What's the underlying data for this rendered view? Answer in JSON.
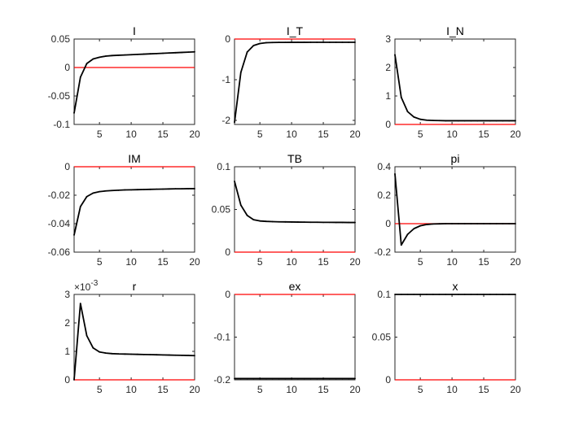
{
  "chart_data": [
    {
      "type": "line",
      "title": "I",
      "xlim": [
        1,
        20
      ],
      "ylim": [
        -0.1,
        0.05
      ],
      "yticks": [
        {
          "v": 0.05,
          "label": "0.05"
        },
        {
          "v": 0,
          "label": "0"
        },
        {
          "v": -0.05,
          "label": "-0.05"
        },
        {
          "v": -0.1,
          "label": "-0.1"
        }
      ],
      "xticks": [
        5,
        10,
        15,
        20
      ],
      "zero_line": 0,
      "zero_color": "#ff0000",
      "x": [
        1,
        2,
        3,
        4,
        5,
        6,
        7,
        8,
        9,
        10,
        11,
        12,
        13,
        14,
        15,
        16,
        17,
        18,
        19,
        20
      ],
      "values": [
        -0.08,
        -0.017,
        0.007,
        0.015,
        0.018,
        0.02,
        0.021,
        0.0215,
        0.022,
        0.0225,
        0.023,
        0.0235,
        0.024,
        0.0245,
        0.025,
        0.0255,
        0.026,
        0.0265,
        0.027,
        0.0275
      ]
    },
    {
      "type": "line",
      "title": "I_T",
      "xlim": [
        1,
        20
      ],
      "ylim": [
        -2.1,
        0
      ],
      "yticks": [
        {
          "v": 0,
          "label": "0"
        },
        {
          "v": -1,
          "label": "-1"
        },
        {
          "v": -2,
          "label": "-2"
        }
      ],
      "xticks": [
        5,
        10,
        15,
        20
      ],
      "zero_line": 0,
      "zero_color": "#ff0000",
      "x": [
        1,
        2,
        3,
        4,
        5,
        6,
        7,
        8,
        9,
        10,
        11,
        12,
        13,
        14,
        15,
        16,
        17,
        18,
        19,
        20
      ],
      "values": [
        -2.05,
        -0.82,
        -0.32,
        -0.16,
        -0.11,
        -0.09,
        -0.085,
        -0.083,
        -0.082,
        -0.081,
        -0.081,
        -0.081,
        -0.08,
        -0.08,
        -0.08,
        -0.08,
        -0.08,
        -0.08,
        -0.08,
        -0.08
      ]
    },
    {
      "type": "line",
      "title": "I_N",
      "xlim": [
        1,
        20
      ],
      "ylim": [
        0,
        3
      ],
      "yticks": [
        {
          "v": 3,
          "label": "3"
        },
        {
          "v": 2,
          "label": "2"
        },
        {
          "v": 1,
          "label": "1"
        },
        {
          "v": 0,
          "label": "0"
        }
      ],
      "xticks": [
        5,
        10,
        15,
        20
      ],
      "zero_line": 0,
      "zero_color": "#ff0000",
      "x": [
        1,
        2,
        3,
        4,
        5,
        6,
        7,
        8,
        9,
        10,
        11,
        12,
        13,
        14,
        15,
        16,
        17,
        18,
        19,
        20
      ],
      "values": [
        2.45,
        0.95,
        0.45,
        0.26,
        0.18,
        0.15,
        0.14,
        0.135,
        0.13,
        0.13,
        0.13,
        0.13,
        0.13,
        0.13,
        0.13,
        0.13,
        0.13,
        0.13,
        0.13,
        0.13
      ]
    },
    {
      "type": "line",
      "title": "IM",
      "xlim": [
        1,
        20
      ],
      "ylim": [
        -0.06,
        0
      ],
      "yticks": [
        {
          "v": 0,
          "label": "0"
        },
        {
          "v": -0.02,
          "label": "-0.02"
        },
        {
          "v": -0.04,
          "label": "-0.04"
        },
        {
          "v": -0.06,
          "label": "-0.06"
        }
      ],
      "xticks": [
        5,
        10,
        15,
        20
      ],
      "zero_line": 0,
      "zero_color": "#ff0000",
      "x": [
        1,
        2,
        3,
        4,
        5,
        6,
        7,
        8,
        9,
        10,
        11,
        12,
        13,
        14,
        15,
        16,
        17,
        18,
        19,
        20
      ],
      "values": [
        -0.048,
        -0.028,
        -0.021,
        -0.0185,
        -0.0175,
        -0.017,
        -0.0167,
        -0.0165,
        -0.0163,
        -0.0162,
        -0.0161,
        -0.016,
        -0.0159,
        -0.0158,
        -0.0157,
        -0.0156,
        -0.0155,
        -0.0155,
        -0.0154,
        -0.0154
      ]
    },
    {
      "type": "line",
      "title": "TB",
      "xlim": [
        1,
        20
      ],
      "ylim": [
        0,
        0.1
      ],
      "yticks": [
        {
          "v": 0.1,
          "label": "0.1"
        },
        {
          "v": 0.05,
          "label": "0.05"
        },
        {
          "v": 0,
          "label": "0"
        }
      ],
      "xticks": [
        5,
        10,
        15,
        20
      ],
      "zero_line": 0,
      "zero_color": "#ff0000",
      "x": [
        1,
        2,
        3,
        4,
        5,
        6,
        7,
        8,
        9,
        10,
        11,
        12,
        13,
        14,
        15,
        16,
        17,
        18,
        19,
        20
      ],
      "values": [
        0.083,
        0.055,
        0.043,
        0.038,
        0.0365,
        0.036,
        0.0357,
        0.0355,
        0.0354,
        0.0353,
        0.0352,
        0.0351,
        0.035,
        0.035,
        0.0349,
        0.0349,
        0.0348,
        0.0348,
        0.0347,
        0.0347
      ]
    },
    {
      "type": "line",
      "title": "pi",
      "xlim": [
        1,
        20
      ],
      "ylim": [
        -0.2,
        0.4
      ],
      "yticks": [
        {
          "v": 0.4,
          "label": "0.4"
        },
        {
          "v": 0.2,
          "label": "0.2"
        },
        {
          "v": 0,
          "label": "0"
        },
        {
          "v": -0.2,
          "label": "-0.2"
        }
      ],
      "xticks": [
        5,
        10,
        15,
        20
      ],
      "zero_line": 0,
      "zero_color": "#ff0000",
      "x": [
        1,
        2,
        3,
        4,
        5,
        6,
        7,
        8,
        9,
        10,
        11,
        12,
        13,
        14,
        15,
        16,
        17,
        18,
        19,
        20
      ],
      "values": [
        0.35,
        -0.15,
        -0.075,
        -0.035,
        -0.015,
        -0.006,
        -0.002,
        -0.001,
        0,
        0,
        0,
        0,
        0,
        0,
        0,
        0,
        0,
        0,
        0,
        0
      ]
    },
    {
      "type": "line",
      "title": "r",
      "multiplier_label": "×10",
      "multiplier_exp": "-3",
      "xlim": [
        1,
        20
      ],
      "ylim": [
        0,
        3
      ],
      "yticks": [
        {
          "v": 3,
          "label": "3"
        },
        {
          "v": 2,
          "label": "2"
        },
        {
          "v": 1,
          "label": "1"
        },
        {
          "v": 0,
          "label": "0"
        }
      ],
      "xticks": [
        5,
        10,
        15,
        20
      ],
      "zero_line": 0,
      "zero_color": "#ff0000",
      "x": [
        1,
        2,
        3,
        4,
        5,
        6,
        7,
        8,
        9,
        10,
        11,
        12,
        13,
        14,
        15,
        16,
        17,
        18,
        19,
        20
      ],
      "values": [
        0,
        2.68,
        1.55,
        1.12,
        0.98,
        0.94,
        0.92,
        0.91,
        0.905,
        0.9,
        0.895,
        0.89,
        0.885,
        0.88,
        0.875,
        0.87,
        0.865,
        0.86,
        0.855,
        0.85
      ]
    },
    {
      "type": "line",
      "title": "ex",
      "xlim": [
        1,
        20
      ],
      "ylim": [
        -0.2,
        0
      ],
      "yticks": [
        {
          "v": 0,
          "label": "0"
        },
        {
          "v": -0.1,
          "label": "-0.1"
        },
        {
          "v": -0.2,
          "label": "-0.2"
        }
      ],
      "xticks": [
        5,
        10,
        15,
        20
      ],
      "zero_line": 0,
      "zero_color": "#ff0000",
      "x": [
        1,
        2,
        3,
        4,
        5,
        6,
        7,
        8,
        9,
        10,
        11,
        12,
        13,
        14,
        15,
        16,
        17,
        18,
        19,
        20
      ],
      "values": [
        -0.197,
        -0.197,
        -0.197,
        -0.197,
        -0.197,
        -0.197,
        -0.197,
        -0.197,
        -0.197,
        -0.197,
        -0.197,
        -0.197,
        -0.197,
        -0.197,
        -0.197,
        -0.197,
        -0.197,
        -0.197,
        -0.197,
        -0.197
      ]
    },
    {
      "type": "line",
      "title": "x",
      "xlim": [
        1,
        20
      ],
      "ylim": [
        0,
        0.1
      ],
      "yticks": [
        {
          "v": 0.1,
          "label": "0.1"
        },
        {
          "v": 0.05,
          "label": "0.05"
        },
        {
          "v": 0,
          "label": "0"
        }
      ],
      "xticks": [
        5,
        10,
        15,
        20
      ],
      "zero_line": 0,
      "zero_color": "#ff0000",
      "x": [
        1,
        2,
        3,
        4,
        5,
        6,
        7,
        8,
        9,
        10,
        11,
        12,
        13,
        14,
        15,
        16,
        17,
        18,
        19,
        20
      ],
      "values": [
        0.1,
        0.1,
        0.1,
        0.1,
        0.1,
        0.1,
        0.1,
        0.1,
        0.1,
        0.1,
        0.1,
        0.1,
        0.1,
        0.1,
        0.1,
        0.1,
        0.1,
        0.1,
        0.1,
        0.1
      ]
    }
  ]
}
